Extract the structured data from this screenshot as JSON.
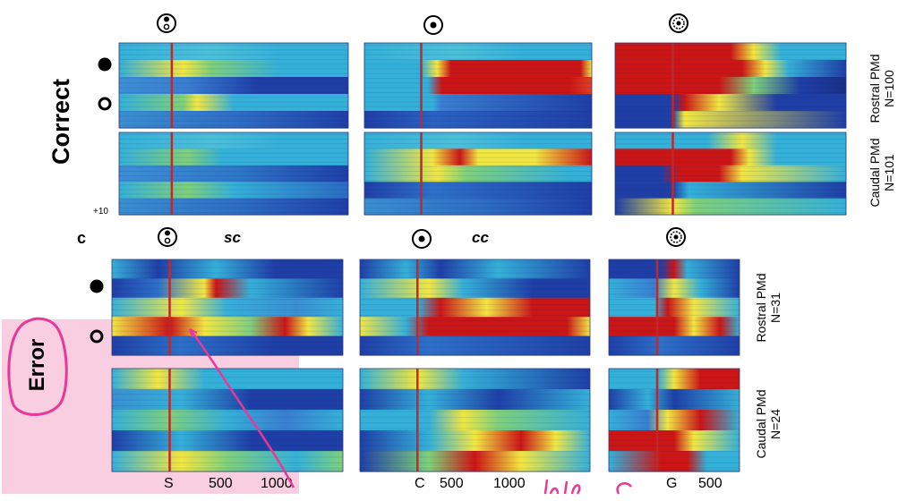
{
  "figure": {
    "top_section": {
      "row_label": "Correct",
      "scale_label": "+10",
      "rows": [
        {
          "area": "Rostral PMd",
          "n": "N=100"
        },
        {
          "area": "Caudal PMd",
          "n": "N=101"
        }
      ],
      "column_icons": [
        "same-color-cue-icon",
        "color-cue-icon",
        "go-signal-icon"
      ]
    },
    "bottom_section": {
      "panel_letter": "c",
      "row_label": "Error",
      "conditions": [
        "sc",
        "cc"
      ],
      "rows": [
        {
          "area": "Rostral PMd",
          "n": "N=31"
        },
        {
          "area": "Caudal PMd",
          "n": "N=24"
        }
      ],
      "x_ticks": [
        [
          "S",
          "500",
          "1000"
        ],
        [
          "C",
          "500",
          "1000"
        ],
        [
          "G",
          "500"
        ]
      ]
    },
    "colors": {
      "event_line": "#c0282a",
      "highlight": "#f4a6c8",
      "annotation": "#e8389a",
      "heat_low": "#1f3fa6",
      "heat_mid": "#35b0d8",
      "heat_high": "#cc1515"
    }
  }
}
